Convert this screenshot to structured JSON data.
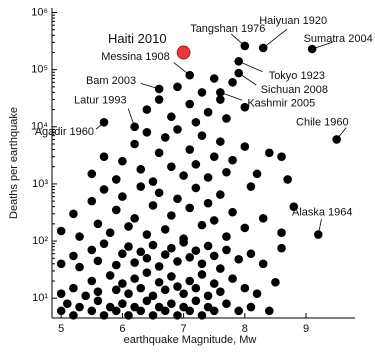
{
  "chart_data": {
    "type": "scatter",
    "xlabel": "earthquake Magnitude, Mw",
    "ylabel": "Deaths per earthquake",
    "xlim": [
      4.85,
      9.8
    ],
    "xticks": [
      5,
      6,
      7,
      8,
      9
    ],
    "ylim": [
      4.5,
      1200000
    ],
    "log_y": true,
    "yticks": [
      {
        "value": 10,
        "label": "10¹"
      },
      {
        "value": 100,
        "label": "10²"
      },
      {
        "value": 1000,
        "label": "10³"
      },
      {
        "value": 10000,
        "label": "10⁴"
      },
      {
        "value": 100000,
        "label": "10⁵"
      },
      {
        "value": 1000000,
        "label": "10⁶"
      }
    ],
    "series": [
      {
        "color": "#000000",
        "x": [
          5.0,
          5.1,
          5.2,
          5.3,
          5.5,
          5.6,
          5.7,
          5.8,
          5.9,
          6.0,
          6.1,
          6.2,
          6.3,
          6.4,
          6.5,
          6.6,
          6.7,
          6.8,
          6.9,
          7.0,
          7.1,
          7.2,
          7.3,
          7.4,
          7.5,
          7.7,
          7.9,
          8.1,
          8.4,
          5.0,
          5.2,
          5.4,
          5.5,
          5.6,
          5.8,
          5.9,
          6.0,
          6.1,
          6.2,
          6.3,
          6.4,
          6.5,
          6.6,
          6.7,
          6.8,
          6.9,
          7.0,
          7.1,
          7.2,
          7.3,
          7.4,
          7.5,
          7.6,
          7.8,
          8.0,
          8.2,
          8.5,
          5.0,
          5.2,
          5.3,
          5.5,
          5.6,
          5.7,
          5.9,
          6.0,
          6.1,
          6.2,
          6.3,
          6.4,
          6.5,
          6.6,
          6.7,
          6.8,
          6.9,
          7.0,
          7.1,
          7.2,
          7.3,
          7.4,
          7.5,
          7.6,
          7.7,
          7.9,
          8.1,
          8.3,
          8.6,
          5.0,
          5.2,
          5.3,
          5.5,
          5.6,
          5.7,
          5.8,
          5.9,
          6.0,
          6.1,
          6.2,
          6.3,
          6.4,
          6.5,
          6.6,
          6.7,
          6.8,
          6.9,
          7.0,
          7.1,
          7.2,
          7.3,
          7.4,
          7.5,
          7.6,
          7.7,
          7.8,
          8.0,
          8.1,
          8.3,
          8.6,
          8.8,
          5.5,
          5.7,
          5.9,
          6.0,
          6.2,
          6.3,
          6.4,
          6.5,
          6.6,
          6.7,
          6.8,
          6.9,
          7.0,
          7.1,
          7.2,
          7.3,
          7.4,
          7.5,
          7.6,
          7.7,
          7.8,
          8.0,
          8.2,
          8.4,
          8.6,
          8.7,
          6.4,
          6.6,
          6.8,
          6.9,
          7.1,
          7.2,
          7.3,
          7.4,
          7.5,
          7.6,
          7.7,
          7.8,
          8.0
        ],
        "values": [
          6,
          8,
          5,
          7,
          6,
          9,
          5,
          7,
          6,
          8,
          5,
          7,
          6,
          9,
          5,
          7,
          6,
          8,
          5,
          7,
          6,
          9,
          5,
          7,
          6,
          8,
          6,
          7,
          6,
          12,
          15,
          11,
          20,
          13,
          25,
          14,
          18,
          12,
          22,
          15,
          28,
          11,
          19,
          14,
          24,
          16,
          12,
          20,
          15,
          26,
          11,
          18,
          13,
          22,
          15,
          12,
          19,
          40,
          55,
          35,
          70,
          45,
          90,
          38,
          60,
          80,
          42,
          65,
          50,
          85,
          36,
          58,
          75,
          44,
          95,
          52,
          68,
          40,
          82,
          55,
          33,
          70,
          48,
          60,
          40,
          75,
          150,
          300,
          120,
          500,
          200,
          800,
          140,
          350,
          600,
          180,
          250,
          900,
          130,
          420,
          700,
          160,
          280,
          550,
          110,
          380,
          850,
          190,
          460,
          230,
          650,
          120,
          320,
          170,
          900,
          250,
          140,
          400,
          1500,
          3000,
          1200,
          2500,
          5000,
          1800,
          8000,
          1100,
          3500,
          6500,
          2000,
          9000,
          1400,
          4000,
          2200,
          7000,
          1300,
          3000,
          5500,
          1600,
          2600,
          4500,
          1500,
          3500,
          3000,
          1200,
          20000,
          30000,
          15000,
          50000,
          25000,
          12000,
          40000,
          18000,
          70000,
          30000,
          14000,
          60000,
          22000
        ]
      }
    ],
    "annotations": [
      {
        "text": "Haiti 2010",
        "x": 7.0,
        "y": 200000,
        "color": "#e8383d"
      },
      {
        "text": "Tangshan 1976",
        "x": 8.0,
        "y": 260000
      },
      {
        "text": "Haiyuan 1920",
        "x": 8.3,
        "y": 240000
      },
      {
        "text": "Sumatra 2004",
        "x": 9.1,
        "y": 230000
      },
      {
        "text": "Messina 1908",
        "x": 7.1,
        "y": 80000
      },
      {
        "text": "Bam 2003",
        "x": 6.6,
        "y": 46000
      },
      {
        "text": "Tokyo 1923",
        "x": 7.9,
        "y": 140000
      },
      {
        "text": "Sichuan 2008",
        "x": 7.9,
        "y": 87000
      },
      {
        "text": "Kashmir 2005",
        "x": 7.6,
        "y": 40000
      },
      {
        "text": "Latur 1993",
        "x": 6.2,
        "y": 10000
      },
      {
        "text": "Agadir 1960",
        "x": 5.7,
        "y": 12000
      },
      {
        "text": "Chile 1960",
        "x": 9.5,
        "y": 6000
      },
      {
        "text": "Alaska 1964",
        "x": 9.2,
        "y": 130
      }
    ]
  }
}
